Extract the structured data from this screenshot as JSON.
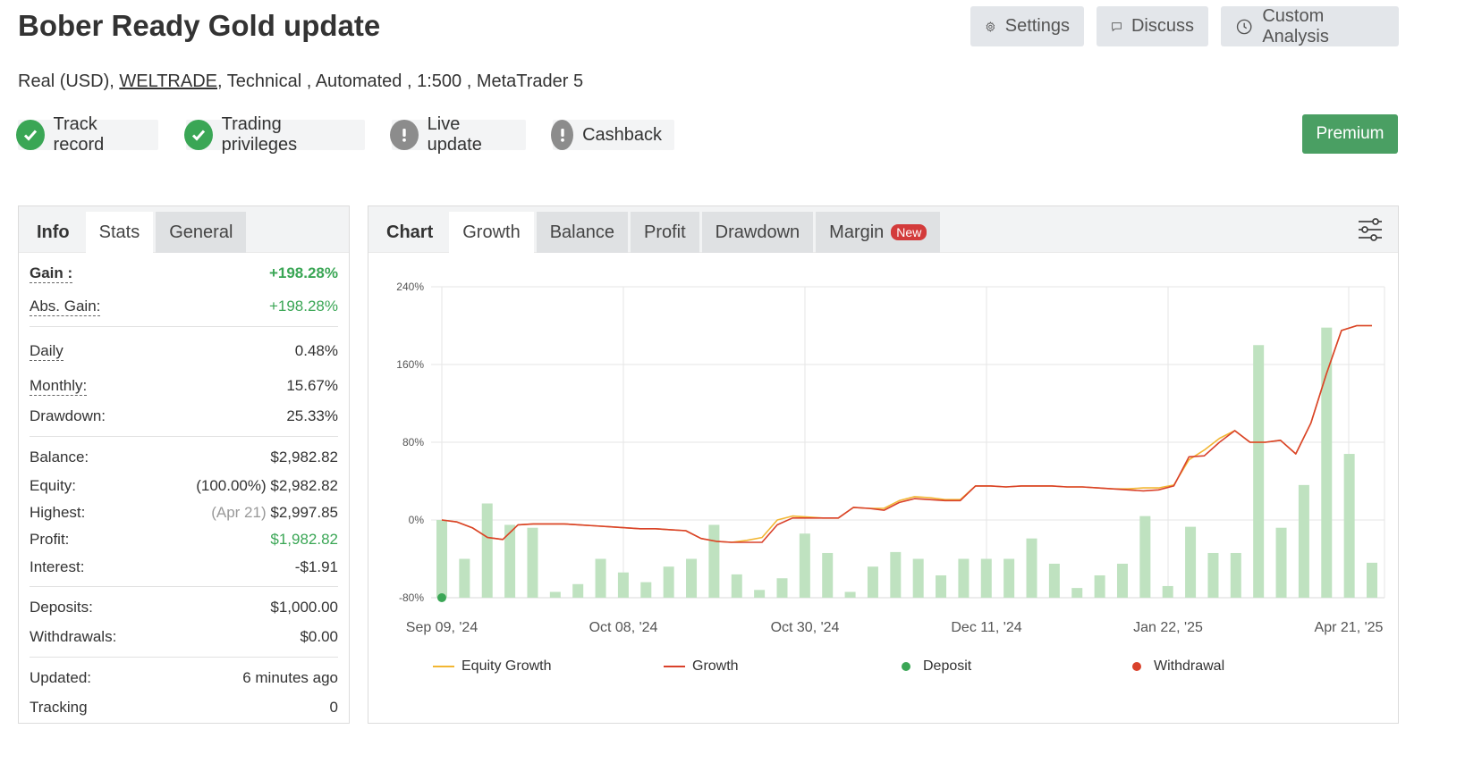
{
  "header": {
    "title": "Bober Ready Gold update",
    "subtitle_prefix": "Real (USD),",
    "broker": "WELTRADE",
    "subtitle_suffix": ", Technical , Automated , 1:500 , MetaTrader 5"
  },
  "top_buttons": {
    "settings": "Settings",
    "discuss": "Discuss",
    "custom_analysis": "Custom Analysis"
  },
  "badges": {
    "track_record": "Track record",
    "trading_privileges": "Trading privileges",
    "live_update": "Live update",
    "cashback": "Cashback",
    "premium": "Premium"
  },
  "left_tabs": {
    "info": "Info",
    "stats": "Stats",
    "general": "General"
  },
  "stats": {
    "gain_label": "Gain :",
    "gain_value": "+198.28%",
    "abs_gain_label": "Abs. Gain:",
    "abs_gain_value": "+198.28%",
    "daily_label": "Daily",
    "daily_value": "0.48%",
    "monthly_label": "Monthly:",
    "monthly_value": "15.67%",
    "drawdown_label": "Drawdown:",
    "drawdown_value": "25.33%",
    "balance_label": "Balance:",
    "balance_value": "$2,982.82",
    "equity_label": "Equity:",
    "equity_value": "(100.00%) $2,982.82",
    "highest_label": "Highest:",
    "highest_date": "(Apr 21)",
    "highest_value": "$2,997.85",
    "profit_label": "Profit:",
    "profit_value": "$1,982.82",
    "interest_label": "Interest:",
    "interest_value": "-$1.91",
    "deposits_label": "Deposits:",
    "deposits_value": "$1,000.00",
    "withdrawals_label": "Withdrawals:",
    "withdrawals_value": "$0.00",
    "updated_label": "Updated:",
    "updated_value": "6 minutes ago",
    "tracking_label": "Tracking",
    "tracking_value": "0"
  },
  "chart_tabs": {
    "chart": "Chart",
    "growth": "Growth",
    "balance": "Balance",
    "profit": "Profit",
    "drawdown": "Drawdown",
    "margin": "Margin",
    "new_tag": "New"
  },
  "colors": {
    "growth": "#d9412b",
    "equity": "#f2b632",
    "bars": "#bfe2c0",
    "deposit": "#3aa655",
    "withdrawal": "#d9412b",
    "premium": "#4a9f63"
  },
  "chart_data": {
    "type": "line",
    "y_ticks": [
      "240%",
      "160%",
      "80%",
      "0%",
      "-80%"
    ],
    "ylim": [
      -80,
      240
    ],
    "x_ticks": [
      "Sep 09, '24",
      "Oct 08, '24",
      "Oct 30, '24",
      "Dec 11, '24",
      "Jan 22, '25",
      "Apr 21, '25"
    ],
    "legend": [
      "Equity Growth",
      "Growth",
      "Deposit",
      "Withdrawal"
    ],
    "growth": [
      0,
      -2,
      -8,
      -18,
      -20,
      -5,
      -4,
      -4,
      -4,
      -5,
      -6,
      -7,
      -8,
      -9,
      -9,
      -10,
      -11,
      -19,
      -22,
      -23,
      -23,
      -23,
      -5,
      2,
      2,
      2,
      2,
      13,
      12,
      10,
      18,
      22,
      21,
      20,
      20,
      35,
      35,
      34,
      35,
      35,
      35,
      34,
      34,
      33,
      32,
      31,
      30,
      31,
      35,
      65,
      66,
      80,
      92,
      80,
      80,
      82,
      68,
      100,
      150,
      195,
      200,
      200
    ],
    "equity_growth": [
      0,
      -2,
      -8,
      -18,
      -20,
      -5,
      -4,
      -4,
      -4,
      -5,
      -6,
      -7,
      -8,
      -9,
      -9,
      -10,
      -11,
      -19,
      -22,
      -23,
      -21,
      -18,
      0,
      4,
      3,
      2,
      2,
      13,
      12,
      12,
      20,
      24,
      23,
      21,
      21,
      35,
      35,
      34,
      35,
      35,
      35,
      34,
      34,
      33,
      32,
      32,
      33,
      33,
      36,
      62,
      72,
      84,
      92,
      80,
      80,
      82,
      68,
      100,
      150,
      195,
      200,
      200
    ],
    "bars": [
      0,
      -40,
      17,
      -5,
      -8,
      -74,
      -66,
      -40,
      -54,
      -64,
      -48,
      -40,
      -5,
      -56,
      -72,
      -60,
      -14,
      -34,
      -74,
      -48,
      -33,
      -40,
      -57,
      -40,
      -40,
      -40,
      -19,
      -45,
      -70,
      -57,
      -45,
      4,
      -68,
      -7,
      -34,
      -34,
      180,
      -8,
      36,
      198,
      68,
      -44
    ],
    "deposit_points": [
      {
        "x": "Sep 09, '24",
        "y": -80
      }
    ]
  }
}
